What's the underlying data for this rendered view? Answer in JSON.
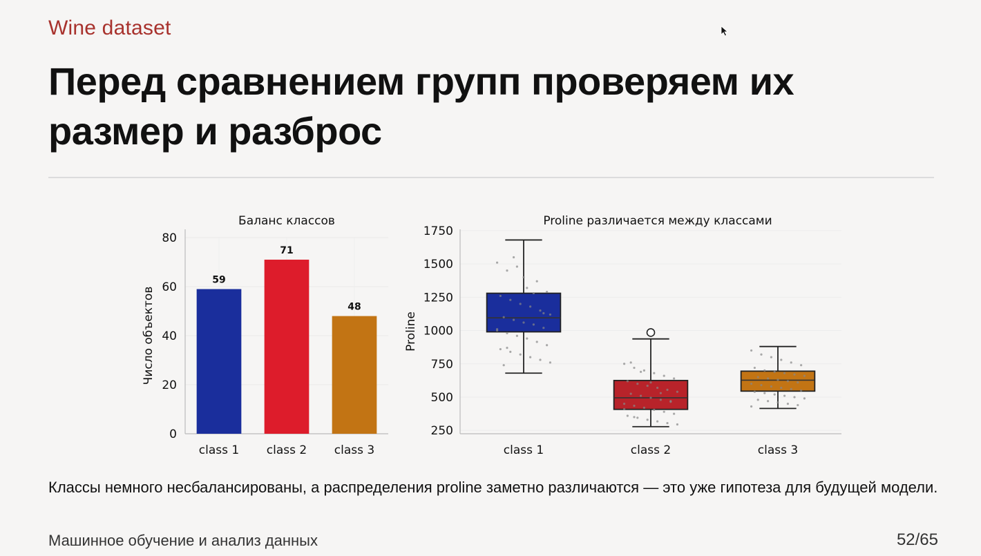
{
  "slide": {
    "kicker": "Wine dataset",
    "title": "Перед сравнением групп проверяем их размер и разброс",
    "caption": "Классы немного несбалансированы, а распределения proline заметно различаются — это уже гипотеза для будущей модели.",
    "footer_left": "Машинное обучение и анализ данных",
    "page_number": "52/65"
  },
  "chart_data": [
    {
      "type": "bar",
      "title": "Баланс классов",
      "xlabel": "",
      "ylabel": "Число объектов",
      "categories": [
        "class 1",
        "class 2",
        "class 3"
      ],
      "values": [
        59,
        71,
        48
      ],
      "data_labels": [
        "59",
        "71",
        "48"
      ],
      "colors": [
        "#1a2e9c",
        "#dd1c2b",
        "#c27414"
      ],
      "ylim": [
        0,
        80
      ],
      "yticks": [
        0,
        20,
        40,
        60,
        80
      ],
      "grid": true
    },
    {
      "type": "box",
      "title": "Proline различается между классами",
      "xlabel": "",
      "ylabel": "Proline",
      "categories": [
        "class 1",
        "class 2",
        "class 3"
      ],
      "colors": [
        "#1a2e9c",
        "#b8232a",
        "#c27414"
      ],
      "ylim": [
        225,
        1760
      ],
      "yticks": [
        250,
        500,
        750,
        1000,
        1250,
        1500,
        1750
      ],
      "grid": true,
      "boxes": [
        {
          "name": "class 1",
          "whisker_low": 680,
          "q1": 990,
          "median": 1095,
          "q3": 1280,
          "whisker_high": 1680,
          "outliers": []
        },
        {
          "name": "class 2",
          "whisker_low": 278,
          "q1": 408,
          "median": 495,
          "q3": 625,
          "whisker_high": 937,
          "outliers": [
            985
          ]
        },
        {
          "name": "class 3",
          "whisker_low": 415,
          "q1": 545,
          "median": 627,
          "q3": 695,
          "whisker_high": 880,
          "outliers": []
        }
      ],
      "points": [
        [
          1510,
          1450,
          1480,
          1320,
          1370,
          1290,
          1260,
          1230,
          1200,
          1180,
          1150,
          1120,
          1100,
          1080,
          1060,
          1045,
          1020,
          1000,
          980,
          960,
          940,
          915,
          890,
          860,
          840,
          820,
          800,
          780,
          760,
          740,
          1550,
          1400,
          1280,
          1130,
          1010,
          870
        ],
        [
          750,
          720,
          700,
          680,
          660,
          640,
          620,
          600,
          585,
          570,
          555,
          540,
          525,
          510,
          495,
          480,
          465,
          450,
          435,
          420,
          405,
          390,
          375,
          360,
          345,
          330,
          318,
          305,
          295,
          760,
          690,
          610,
          530,
          470,
          410,
          350
        ],
        [
          850,
          820,
          800,
          780,
          760,
          740,
          720,
          700,
          690,
          680,
          670,
          660,
          650,
          640,
          630,
          620,
          610,
          600,
          590,
          580,
          570,
          560,
          550,
          540,
          530,
          520,
          510,
          500,
          490,
          480,
          470,
          460,
          450,
          440,
          430
        ]
      ]
    }
  ]
}
